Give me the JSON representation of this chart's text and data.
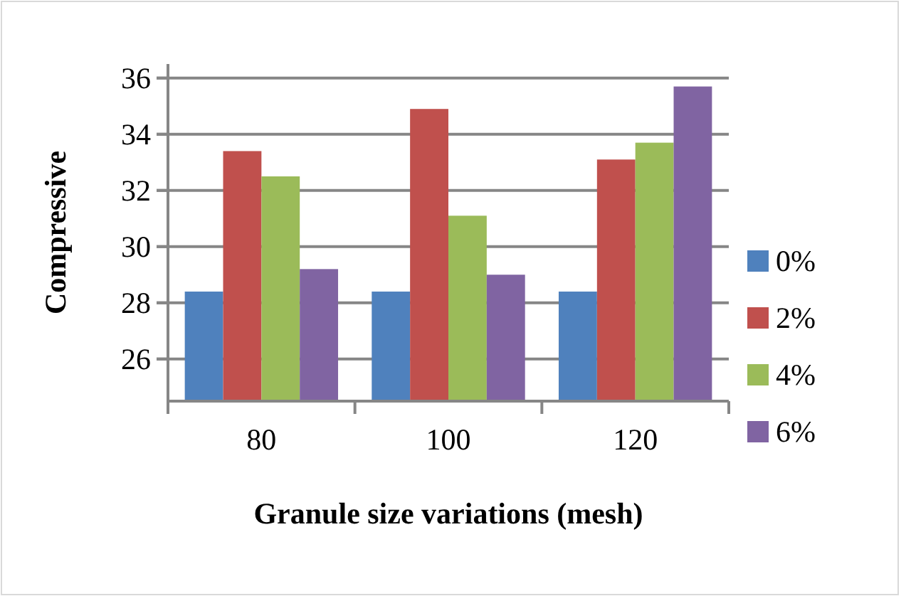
{
  "chart_data": {
    "type": "bar",
    "xlabel": "Granule size variations (mesh)",
    "ylabel": "Compressive",
    "categories": [
      "80",
      "100",
      "120"
    ],
    "series": [
      {
        "name": "0%",
        "color": "#4f81bd",
        "values": [
          28.4,
          28.4,
          28.4
        ]
      },
      {
        "name": "2%",
        "color": "#c0504d",
        "values": [
          33.4,
          34.9,
          33.1
        ]
      },
      {
        "name": "4%",
        "color": "#9bbb59",
        "values": [
          32.5,
          31.1,
          33.7
        ]
      },
      {
        "name": "6%",
        "color": "#8064a2",
        "values": [
          29.2,
          29.0,
          35.7
        ]
      }
    ],
    "ylim": [
      24.5,
      36.5
    ],
    "yticks": [
      26,
      28,
      30,
      32,
      34,
      36
    ],
    "grid": "y",
    "legend": "right"
  }
}
